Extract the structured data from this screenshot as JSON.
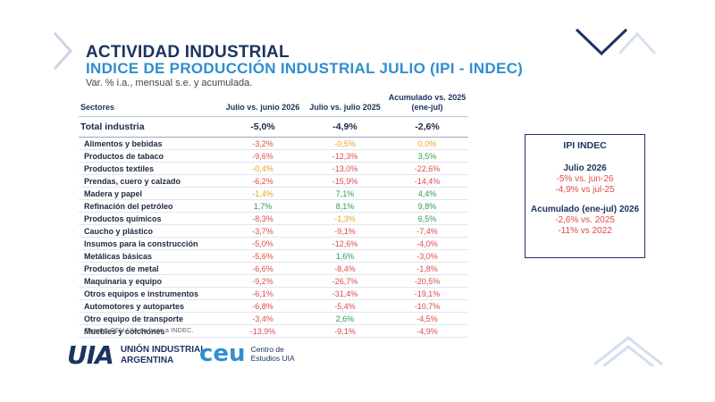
{
  "header": {
    "title": "ACTIVIDAD INDUSTRIAL",
    "subtitle_main": "INDICE DE PRODUCCIÓN INDUSTRIAL JULIO (IPI - INDEC)",
    "subtitle_note": "Var. % i.a., mensual s.e. y acumulada."
  },
  "table": {
    "headers": [
      "Sectores",
      "Julio vs. junio 2026",
      "Julio vs. julio 2025",
      "Acumulado vs. 2025 (ene-jul)"
    ],
    "total": {
      "sector": "Total industria",
      "v1": "-5,0%",
      "v2": "-4,9%",
      "v3": "-2,6%"
    },
    "rows": [
      {
        "sector": "Alimentos y bebidas",
        "v1": "-3,2%",
        "c1": "neg",
        "v2": "-0,5%",
        "c2": "neu",
        "v3": "0,0%",
        "c3": "neu"
      },
      {
        "sector": "Productos de tabaco",
        "v1": "-9,6%",
        "c1": "neg",
        "v2": "-12,3%",
        "c2": "neg",
        "v3": "3,5%",
        "c3": "pos"
      },
      {
        "sector": "Productos textiles",
        "v1": "-0,4%",
        "c1": "neu",
        "v2": "-13,0%",
        "c2": "neg",
        "v3": "-22,6%",
        "c3": "neg"
      },
      {
        "sector": "Prendas, cuero y calzado",
        "v1": "-6,2%",
        "c1": "neg",
        "v2": "-15,9%",
        "c2": "neg",
        "v3": "-14,4%",
        "c3": "neg"
      },
      {
        "sector": "Madera y papel",
        "v1": "-1,4%",
        "c1": "neu",
        "v2": "7,1%",
        "c2": "pos",
        "v3": "4,4%",
        "c3": "pos"
      },
      {
        "sector": "Refinación del petróleo",
        "v1": "1,7%",
        "c1": "pos",
        "v2": "8,1%",
        "c2": "pos",
        "v3": "9,8%",
        "c3": "pos"
      },
      {
        "sector": "Productos químicos",
        "v1": "-8,3%",
        "c1": "neg",
        "v2": "-1,3%",
        "c2": "neu",
        "v3": "6,5%",
        "c3": "pos"
      },
      {
        "sector": "Caucho y plástico",
        "v1": "-3,7%",
        "c1": "neg",
        "v2": "-9,1%",
        "c2": "neg",
        "v3": "-7,4%",
        "c3": "neg"
      },
      {
        "sector": "Insumos para la construcción",
        "v1": "-5,0%",
        "c1": "neg",
        "v2": "-12,6%",
        "c2": "neg",
        "v3": "-4,0%",
        "c3": "neg"
      },
      {
        "sector": "Metálicas básicas",
        "v1": "-5,6%",
        "c1": "neg",
        "v2": "1,6%",
        "c2": "pos",
        "v3": "-3,0%",
        "c3": "neg"
      },
      {
        "sector": "Productos de metal",
        "v1": "-6,6%",
        "c1": "neg",
        "v2": "-8,4%",
        "c2": "neg",
        "v3": "-1,8%",
        "c3": "neg"
      },
      {
        "sector": "Maquinaria y equipo",
        "v1": "-9,2%",
        "c1": "neg",
        "v2": "-26,7%",
        "c2": "neg",
        "v3": "-20,5%",
        "c3": "neg"
      },
      {
        "sector": "Otros equipos e instrumentos",
        "v1": "-6,1%",
        "c1": "neg",
        "v2": "-31,4%",
        "c2": "neg",
        "v3": "-19,1%",
        "c3": "neg"
      },
      {
        "sector": "Automotores y autopartes",
        "v1": "-6,8%",
        "c1": "neg",
        "v2": "-5,4%",
        "c2": "neg",
        "v3": "-10,7%",
        "c3": "neg"
      },
      {
        "sector": "Otro equipo de transporte",
        "v1": "-3,4%",
        "c1": "neg",
        "v2": "2,6%",
        "c2": "pos",
        "v3": "-4,5%",
        "c3": "neg"
      },
      {
        "sector": "Muebles y colchones",
        "v1": "-13,9%",
        "c1": "neg",
        "v2": "-9,1%",
        "c2": "neg",
        "v3": "-4,9%",
        "c3": "neg"
      }
    ]
  },
  "source": "Fuente: CEU-UIA en base a INDEC.",
  "sidebox": {
    "title": "IPI INDEC",
    "section1": "Julio 2026",
    "s1_lines": [
      "-5% vs. jun-26",
      "-4,9% vs jul-25"
    ],
    "section2": "Acumulado (ene-jul) 2026",
    "s2_lines": [
      "-2,6% vs. 2025",
      "-11% vs 2022"
    ]
  },
  "logos": {
    "uia_mark": "UIA",
    "uia_line1": "UNIÓN INDUSTRIAL",
    "uia_line2": "ARGENTINA",
    "ceu_mark": "ceu",
    "ceu_line1": "Centro de",
    "ceu_line2": "Estudios UIA"
  },
  "colors": {
    "negative": "#e04a4a",
    "positive": "#2e9a52",
    "neutral": "#e8a21c",
    "navy": "#1c3461",
    "accent": "#2f8fd0"
  }
}
